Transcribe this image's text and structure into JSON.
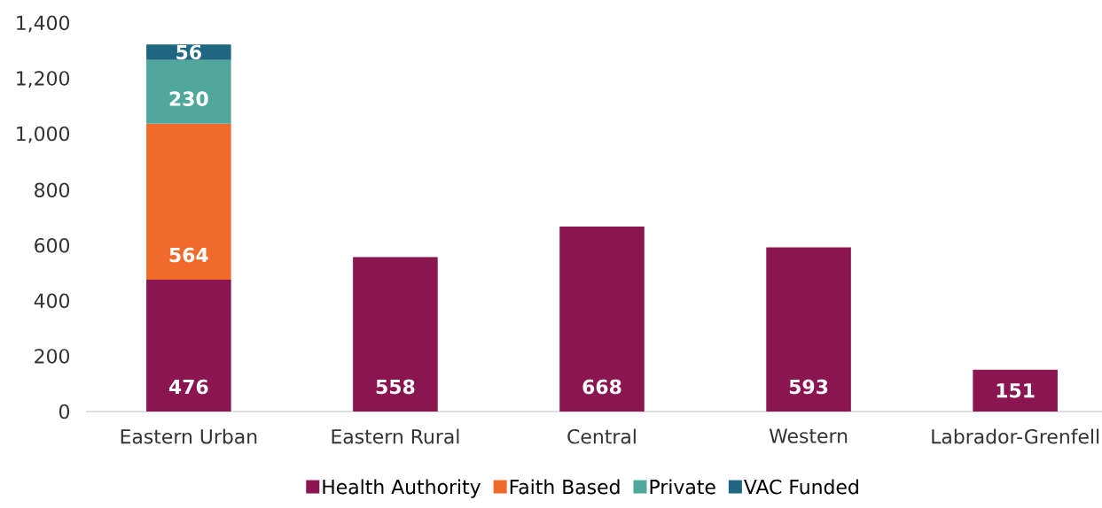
{
  "chart_data": {
    "type": "bar",
    "stacked": true,
    "data_labels": true,
    "legend": "bottom",
    "categories": [
      "Eastern Urban",
      "Eastern Rural",
      "Central",
      "Western",
      "Labrador-Grenfell"
    ],
    "ylim": [
      0,
      1400
    ],
    "yticks": [
      0,
      200,
      400,
      600,
      800,
      {
        "value": 1000,
        "label": "1,000"
      },
      {
        "value": 1200,
        "label": "1,200"
      },
      {
        "value": 1400,
        "label": "1,400"
      }
    ],
    "series": [
      {
        "name": "Health Authority",
        "color": "#8B1551",
        "values": [
          476,
          558,
          668,
          593,
          151
        ]
      },
      {
        "name": "Faith Based",
        "color": "#F06B2B",
        "values": [
          564,
          null,
          null,
          null,
          null
        ]
      },
      {
        "name": "Private",
        "color": "#50A89D",
        "values": [
          230,
          null,
          null,
          null,
          null
        ]
      },
      {
        "name": "VAC Funded",
        "color": "#1F6682",
        "values": [
          56,
          null,
          null,
          null,
          null
        ]
      }
    ]
  }
}
